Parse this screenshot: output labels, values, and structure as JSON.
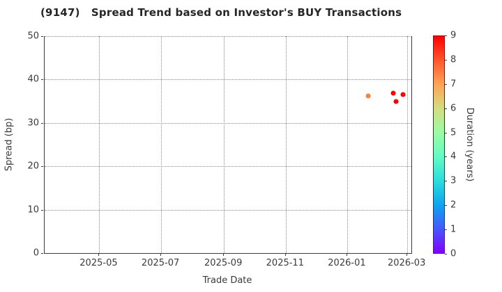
{
  "title": "(9147)   Spread Trend based on Investor's BUY Transactions",
  "chart_data": {
    "type": "scatter",
    "title": "(9147)   Spread Trend based on Investor's BUY Transactions",
    "xlabel": "Trade Date",
    "ylabel": "Spread (bp)",
    "grid": true,
    "ylim": [
      0,
      50
    ],
    "y_ticks": [
      0,
      10,
      20,
      30,
      40,
      50
    ],
    "x_tick_labels": [
      "2025-05",
      "2025-07",
      "2025-09",
      "2025-11",
      "2026-01",
      "2026-03"
    ],
    "x_tick_dates": [
      "2025-05-01",
      "2025-07-01",
      "2025-09-01",
      "2025-11-01",
      "2026-01-01",
      "2026-03-01"
    ],
    "xlim": [
      "2025-03-08",
      "2026-03-05"
    ],
    "points": [
      {
        "date": "2026-01-21",
        "spread": 36.2,
        "duration": 7.5
      },
      {
        "date": "2026-02-15",
        "spread": 36.9,
        "duration": 9.0
      },
      {
        "date": "2026-02-18",
        "spread": 34.9,
        "duration": 9.0
      },
      {
        "date": "2026-02-25",
        "spread": 36.6,
        "duration": 9.0
      }
    ],
    "colorbar": {
      "label": "Duration (years)",
      "min": 0,
      "max": 9,
      "ticks": [
        0,
        1,
        2,
        3,
        4,
        5,
        6,
        7,
        8,
        9
      ],
      "colormap": "rainbow",
      "stops": [
        {
          "value": 0,
          "color": "#8000ff"
        },
        {
          "value": 1,
          "color": "#4757fb"
        },
        {
          "value": 2,
          "color": "#0ea4f0"
        },
        {
          "value": 3,
          "color": "#2bdddd"
        },
        {
          "value": 4,
          "color": "#63fbc4"
        },
        {
          "value": 5,
          "color": "#9cfba4"
        },
        {
          "value": 6,
          "color": "#d4dd80"
        },
        {
          "value": 7,
          "color": "#ffa457"
        },
        {
          "value": 8,
          "color": "#ff572c"
        },
        {
          "value": 9,
          "color": "#ff0000"
        }
      ]
    }
  },
  "colors": {
    "background": "#ffffff",
    "grid": "#8a8a8a",
    "spine": "#3a3a3a",
    "tick_text": "#3a3a3a",
    "title_text": "#262626"
  }
}
